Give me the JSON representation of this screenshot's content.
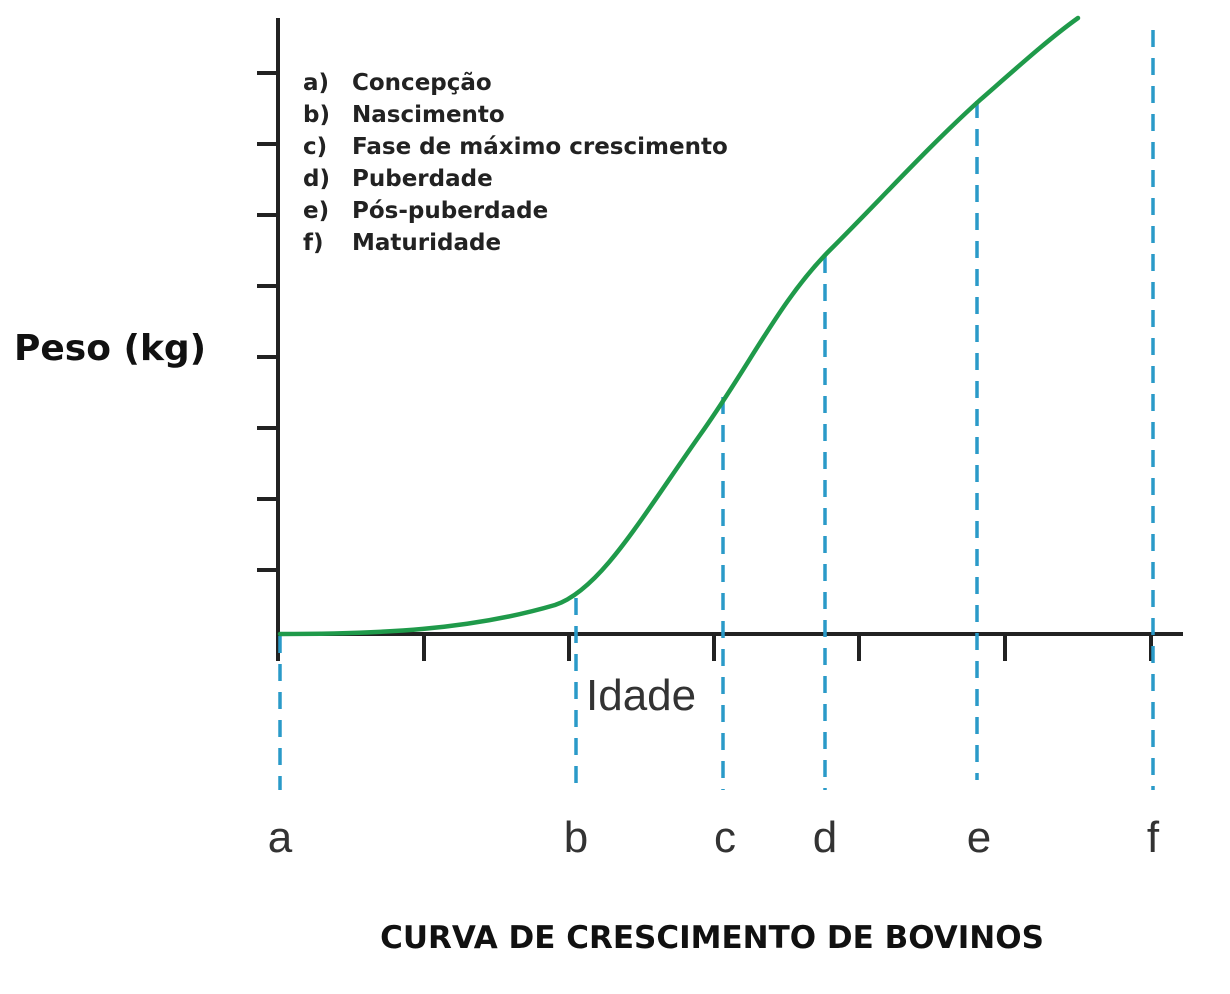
{
  "chart_data": {
    "type": "line",
    "title": "CURVA DE CRESCIMENTO DE BOVINOS",
    "xlabel": "Idade",
    "ylabel": "Peso (kg)",
    "grid": false,
    "legend_position": "top-left",
    "colors": {
      "curve": "#1f9a4a",
      "markers": "#2a9ac8",
      "axes": "#222222"
    },
    "stages": [
      {
        "key": "a)",
        "letter": "a",
        "label": "Concepção"
      },
      {
        "key": "b)",
        "letter": "b",
        "label": "Nascimento"
      },
      {
        "key": "c)",
        "letter": "c",
        "label": "Fase de máximo crescimento"
      },
      {
        "key": "d)",
        "letter": "d",
        "label": "Puberdade"
      },
      {
        "key": "e)",
        "letter": "e",
        "label": "Pós-puberdade"
      },
      {
        "key": "f)",
        "letter": "f",
        "label": "Maturidade"
      }
    ]
  }
}
